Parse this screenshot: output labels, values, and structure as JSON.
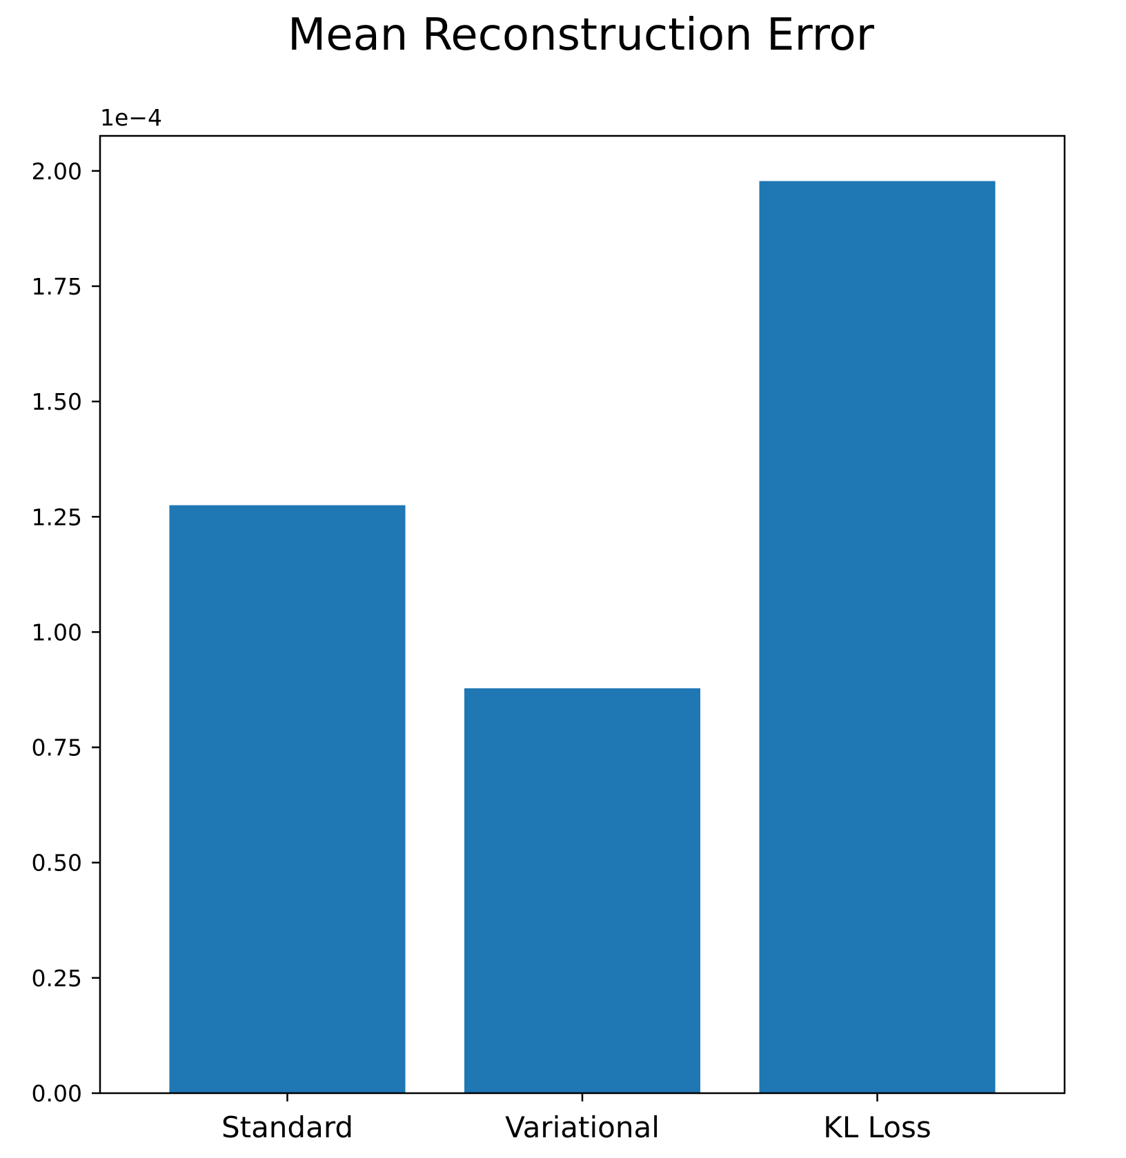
{
  "chart_data": {
    "type": "bar",
    "title": "Mean Reconstruction Error",
    "xlabel": "",
    "ylabel": "",
    "categories": [
      "Standard",
      "Variational",
      "KL Loss"
    ],
    "values": [
      0.0001275,
      8.78e-05,
      0.0001978
    ],
    "y_offset_label": "1e−4",
    "y_scale_factor": 0.0001,
    "ylim": [
      0,
      0.0002076
    ],
    "yticks": [
      0,
      2.5e-05,
      5e-05,
      7.5e-05,
      0.0001,
      0.000125,
      0.00015,
      0.000175,
      0.0002
    ],
    "ytick_labels": [
      "0.00",
      "0.25",
      "0.50",
      "0.75",
      "1.00",
      "1.25",
      "1.50",
      "1.75",
      "2.00"
    ],
    "grid": false,
    "bar_color": "#1f77b4"
  }
}
